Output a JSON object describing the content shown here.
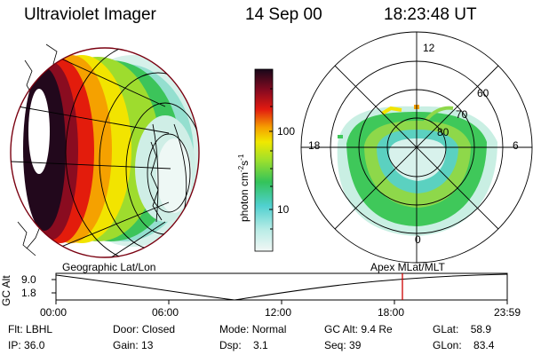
{
  "header": {
    "instrument": "Ultraviolet Imager",
    "date": "14 Sep 00",
    "time": "18:23:48 UT"
  },
  "colorbar": {
    "unit_label": "photon cm",
    "unit_exp1": "-2",
    "unit_mid": "s",
    "unit_exp2": "-1",
    "tick_100": "100",
    "tick_10": "10",
    "scale": "log",
    "colors": [
      "#e6f2ee",
      "#57d1d0",
      "#35c43f",
      "#a7e02c",
      "#f5e800",
      "#f7a400",
      "#e21b0d",
      "#7a0b1a",
      "#1e0a1e"
    ]
  },
  "left_panel": {
    "label": "Geographic Lat/Lon"
  },
  "polar_panel": {
    "label": "Apex  MLat/MLT",
    "mlt_top": "12",
    "mlt_left": "18",
    "mlt_right": "6",
    "mlt_bottom": "0",
    "lat_60": "60",
    "lat_70": "70",
    "lat_80": "80"
  },
  "timeline": {
    "ylabel": "GC Alt",
    "y_top": "9.0",
    "y_bottom": "1.8",
    "ticks": [
      "00:00",
      "06:00",
      "12:00",
      "18:00",
      "23:59"
    ],
    "marker_color": "#cc0000"
  },
  "info": {
    "flt_label": "Flt:",
    "flt_value": "LBHL",
    "ip_label": "IP:",
    "ip_value": "36.0",
    "door_label": "Door:",
    "door_value": "Closed",
    "gain_label": "Gain:",
    "gain_value": "13",
    "mode_label": "Mode:",
    "mode_value": "Normal",
    "dsp_label": "Dsp:",
    "dsp_value": "3.1",
    "gcalt_label": "GC Alt:",
    "gcalt_value": "9.4 Re",
    "seq_label": "Seq:",
    "seq_value": "39",
    "glat_label": "GLat:",
    "glat_value": "58.9",
    "glon_label": "GLon:",
    "glon_value": "83.4"
  }
}
